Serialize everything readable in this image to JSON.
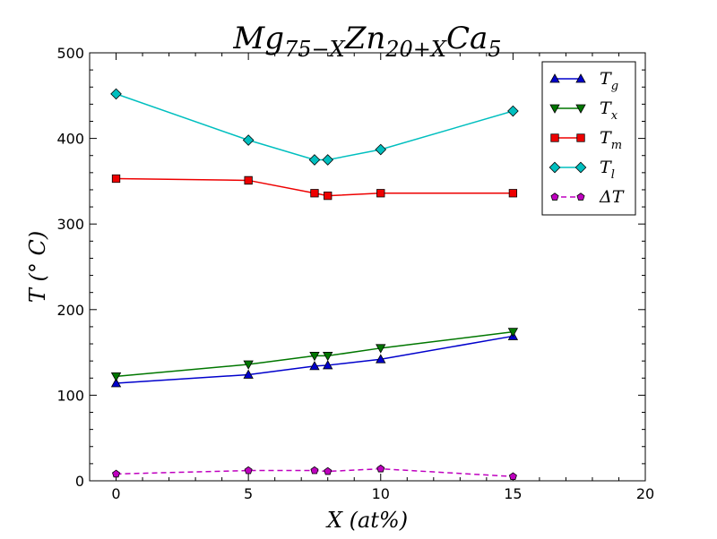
{
  "chart_data": {
    "type": "line",
    "title": {
      "base": "Mg",
      "sub1": "75−X",
      "mid": "Zn",
      "sub2": "20+X",
      "end": "Ca",
      "sub3": "5"
    },
    "xlabel": "X (at%)",
    "ylabel": "T (° C)",
    "xlim": [
      -1,
      20
    ],
    "ylim": [
      0,
      500
    ],
    "xticks": [
      "0",
      "5",
      "10",
      "15",
      "20"
    ],
    "yticks": [
      "0",
      "100",
      "200",
      "300",
      "400",
      "500"
    ],
    "legend_position": "top-right",
    "grid": false,
    "x": [
      0,
      5,
      7.5,
      8,
      10,
      15
    ],
    "series": [
      {
        "name": "Tg",
        "sym": "T",
        "sub": "g",
        "color": "#0000cc",
        "marker": "triangle-up",
        "dash": false,
        "values": [
          114,
          124,
          134,
          135,
          142,
          169
        ]
      },
      {
        "name": "Tx",
        "sym": "T",
        "sub": "x",
        "color": "#007700",
        "marker": "triangle-down",
        "dash": false,
        "values": [
          122,
          136,
          146,
          146,
          155,
          174
        ]
      },
      {
        "name": "Tm",
        "sym": "T",
        "sub": "m",
        "color": "#ee0000",
        "marker": "square",
        "dash": false,
        "values": [
          353,
          351,
          336,
          333,
          336,
          336
        ]
      },
      {
        "name": "Tl",
        "sym": "T",
        "sub": "l",
        "color": "#00bfbf",
        "marker": "diamond",
        "dash": false,
        "values": [
          452,
          398,
          375,
          375,
          387,
          432
        ]
      },
      {
        "name": "ΔT",
        "sym": "ΔT",
        "sub": "",
        "color": "#bf00bf",
        "marker": "pentagon",
        "dash": true,
        "values": [
          8,
          12,
          12,
          11,
          14,
          5
        ]
      }
    ]
  }
}
